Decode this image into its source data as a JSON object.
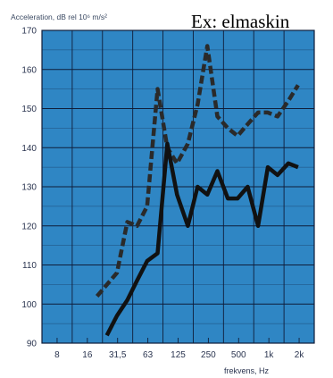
{
  "chart_data": {
    "type": "line",
    "ylabel": "Acceleration, dB rel 10⁶ m/s²",
    "xlabel": "frekvens, Hz",
    "annotation": "Ex: elmaskin",
    "y_ticks": [
      90,
      100,
      110,
      120,
      130,
      140,
      150,
      160,
      170
    ],
    "ylim": [
      90,
      170
    ],
    "x_ticks": [
      "8",
      "16",
      "31,5",
      "63",
      "125",
      "250",
      "500",
      "1k",
      "2k"
    ],
    "x_scale": "log",
    "grid": true,
    "background_color": "#2f86c4",
    "grid_color": "#0f1d3a",
    "series": [
      {
        "style": "dashed",
        "color": "#2a2a2a",
        "x": [
          20,
          31.5,
          40,
          50,
          63,
          80,
          100,
          125,
          160,
          200,
          250,
          315,
          400,
          500,
          630,
          800,
          1000,
          1250,
          1600,
          2000
        ],
        "y": [
          102,
          108,
          121,
          120,
          125,
          155,
          140,
          136,
          141,
          151,
          166,
          148,
          145,
          143,
          146,
          149,
          149,
          148,
          152,
          156
        ]
      },
      {
        "style": "solid",
        "color": "#111111",
        "x": [
          25,
          31.5,
          40,
          50,
          63,
          80,
          100,
          125,
          160,
          200,
          250,
          315,
          400,
          500,
          630,
          800,
          1000,
          1250,
          1600,
          2000
        ],
        "y": [
          92,
          97,
          101,
          106,
          111,
          113,
          141,
          128,
          120,
          130,
          128,
          134,
          127,
          127,
          130,
          120,
          135,
          133,
          136,
          135
        ]
      }
    ]
  }
}
